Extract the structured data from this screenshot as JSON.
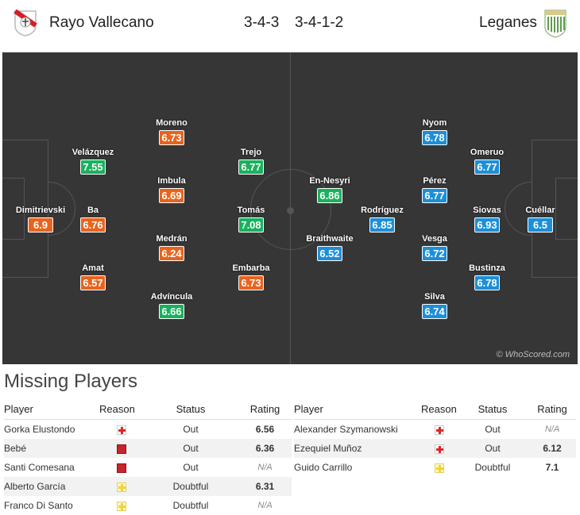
{
  "header": {
    "home_team": "Rayo Vallecano",
    "home_formation": "3-4-3",
    "away_formation": "3-4-1-2",
    "away_team": "Leganes"
  },
  "pitch": {
    "watermark": "© WhoScored.com",
    "home_players": [
      {
        "name": "Dimitrievski",
        "rating": "6.9",
        "rating_class": "orange"
      },
      {
        "name": "Ba",
        "rating": "6.76",
        "rating_class": "orange"
      },
      {
        "name": "Velázquez",
        "rating": "7.55",
        "rating_class": "green"
      },
      {
        "name": "Amat",
        "rating": "6.57",
        "rating_class": "orange"
      },
      {
        "name": "Moreno",
        "rating": "6.73",
        "rating_class": "orange"
      },
      {
        "name": "Imbula",
        "rating": "6.69",
        "rating_class": "orange"
      },
      {
        "name": "Medrán",
        "rating": "6.24",
        "rating_class": "orange"
      },
      {
        "name": "Advíncula",
        "rating": "6.66",
        "rating_class": "green"
      },
      {
        "name": "Trejo",
        "rating": "6.77",
        "rating_class": "green"
      },
      {
        "name": "Tomás",
        "rating": "7.08",
        "rating_class": "green"
      },
      {
        "name": "Embarba",
        "rating": "6.73",
        "rating_class": "orange"
      }
    ],
    "away_players": [
      {
        "name": "En-Nesyri",
        "rating": "6.86",
        "rating_class": "green"
      },
      {
        "name": "Braithwaite",
        "rating": "6.52",
        "rating_class": "blue"
      },
      {
        "name": "Rodríguez",
        "rating": "6.85",
        "rating_class": "blue"
      },
      {
        "name": "Nyom",
        "rating": "6.78",
        "rating_class": "blue"
      },
      {
        "name": "Pérez",
        "rating": "6.77",
        "rating_class": "blue"
      },
      {
        "name": "Vesga",
        "rating": "6.72",
        "rating_class": "blue"
      },
      {
        "name": "Silva",
        "rating": "6.74",
        "rating_class": "blue"
      },
      {
        "name": "Omeruo",
        "rating": "6.77",
        "rating_class": "blue"
      },
      {
        "name": "Siovas",
        "rating": "6.93",
        "rating_class": "blue"
      },
      {
        "name": "Bustinza",
        "rating": "6.78",
        "rating_class": "blue"
      },
      {
        "name": "Cuéllar",
        "rating": "6.5",
        "rating_class": "blue"
      }
    ]
  },
  "missing": {
    "title": "Missing Players",
    "columns": {
      "player": "Player",
      "reason": "Reason",
      "status": "Status",
      "rating": "Rating"
    },
    "home": [
      {
        "player": "Gorka Elustondo",
        "reason": "injury",
        "status": "Out",
        "rating": "6.56"
      },
      {
        "player": "Bebé",
        "reason": "red-card",
        "status": "Out",
        "rating": "6.36"
      },
      {
        "player": "Santi Comesana",
        "reason": "red-card",
        "status": "Out",
        "rating": "N/A"
      },
      {
        "player": "Alberto García",
        "reason": "doubtful",
        "status": "Doubtful",
        "rating": "6.31"
      },
      {
        "player": "Franco Di Santo",
        "reason": "doubtful",
        "status": "Doubtful",
        "rating": "N/A"
      }
    ],
    "away": [
      {
        "player": "Alexander Szymanowski",
        "reason": "injury",
        "status": "Out",
        "rating": "N/A"
      },
      {
        "player": "Ezequiel Muñoz",
        "reason": "injury",
        "status": "Out",
        "rating": "6.12"
      },
      {
        "player": "Guido Carrillo",
        "reason": "doubtful",
        "status": "Doubtful",
        "rating": "7.1"
      }
    ]
  }
}
